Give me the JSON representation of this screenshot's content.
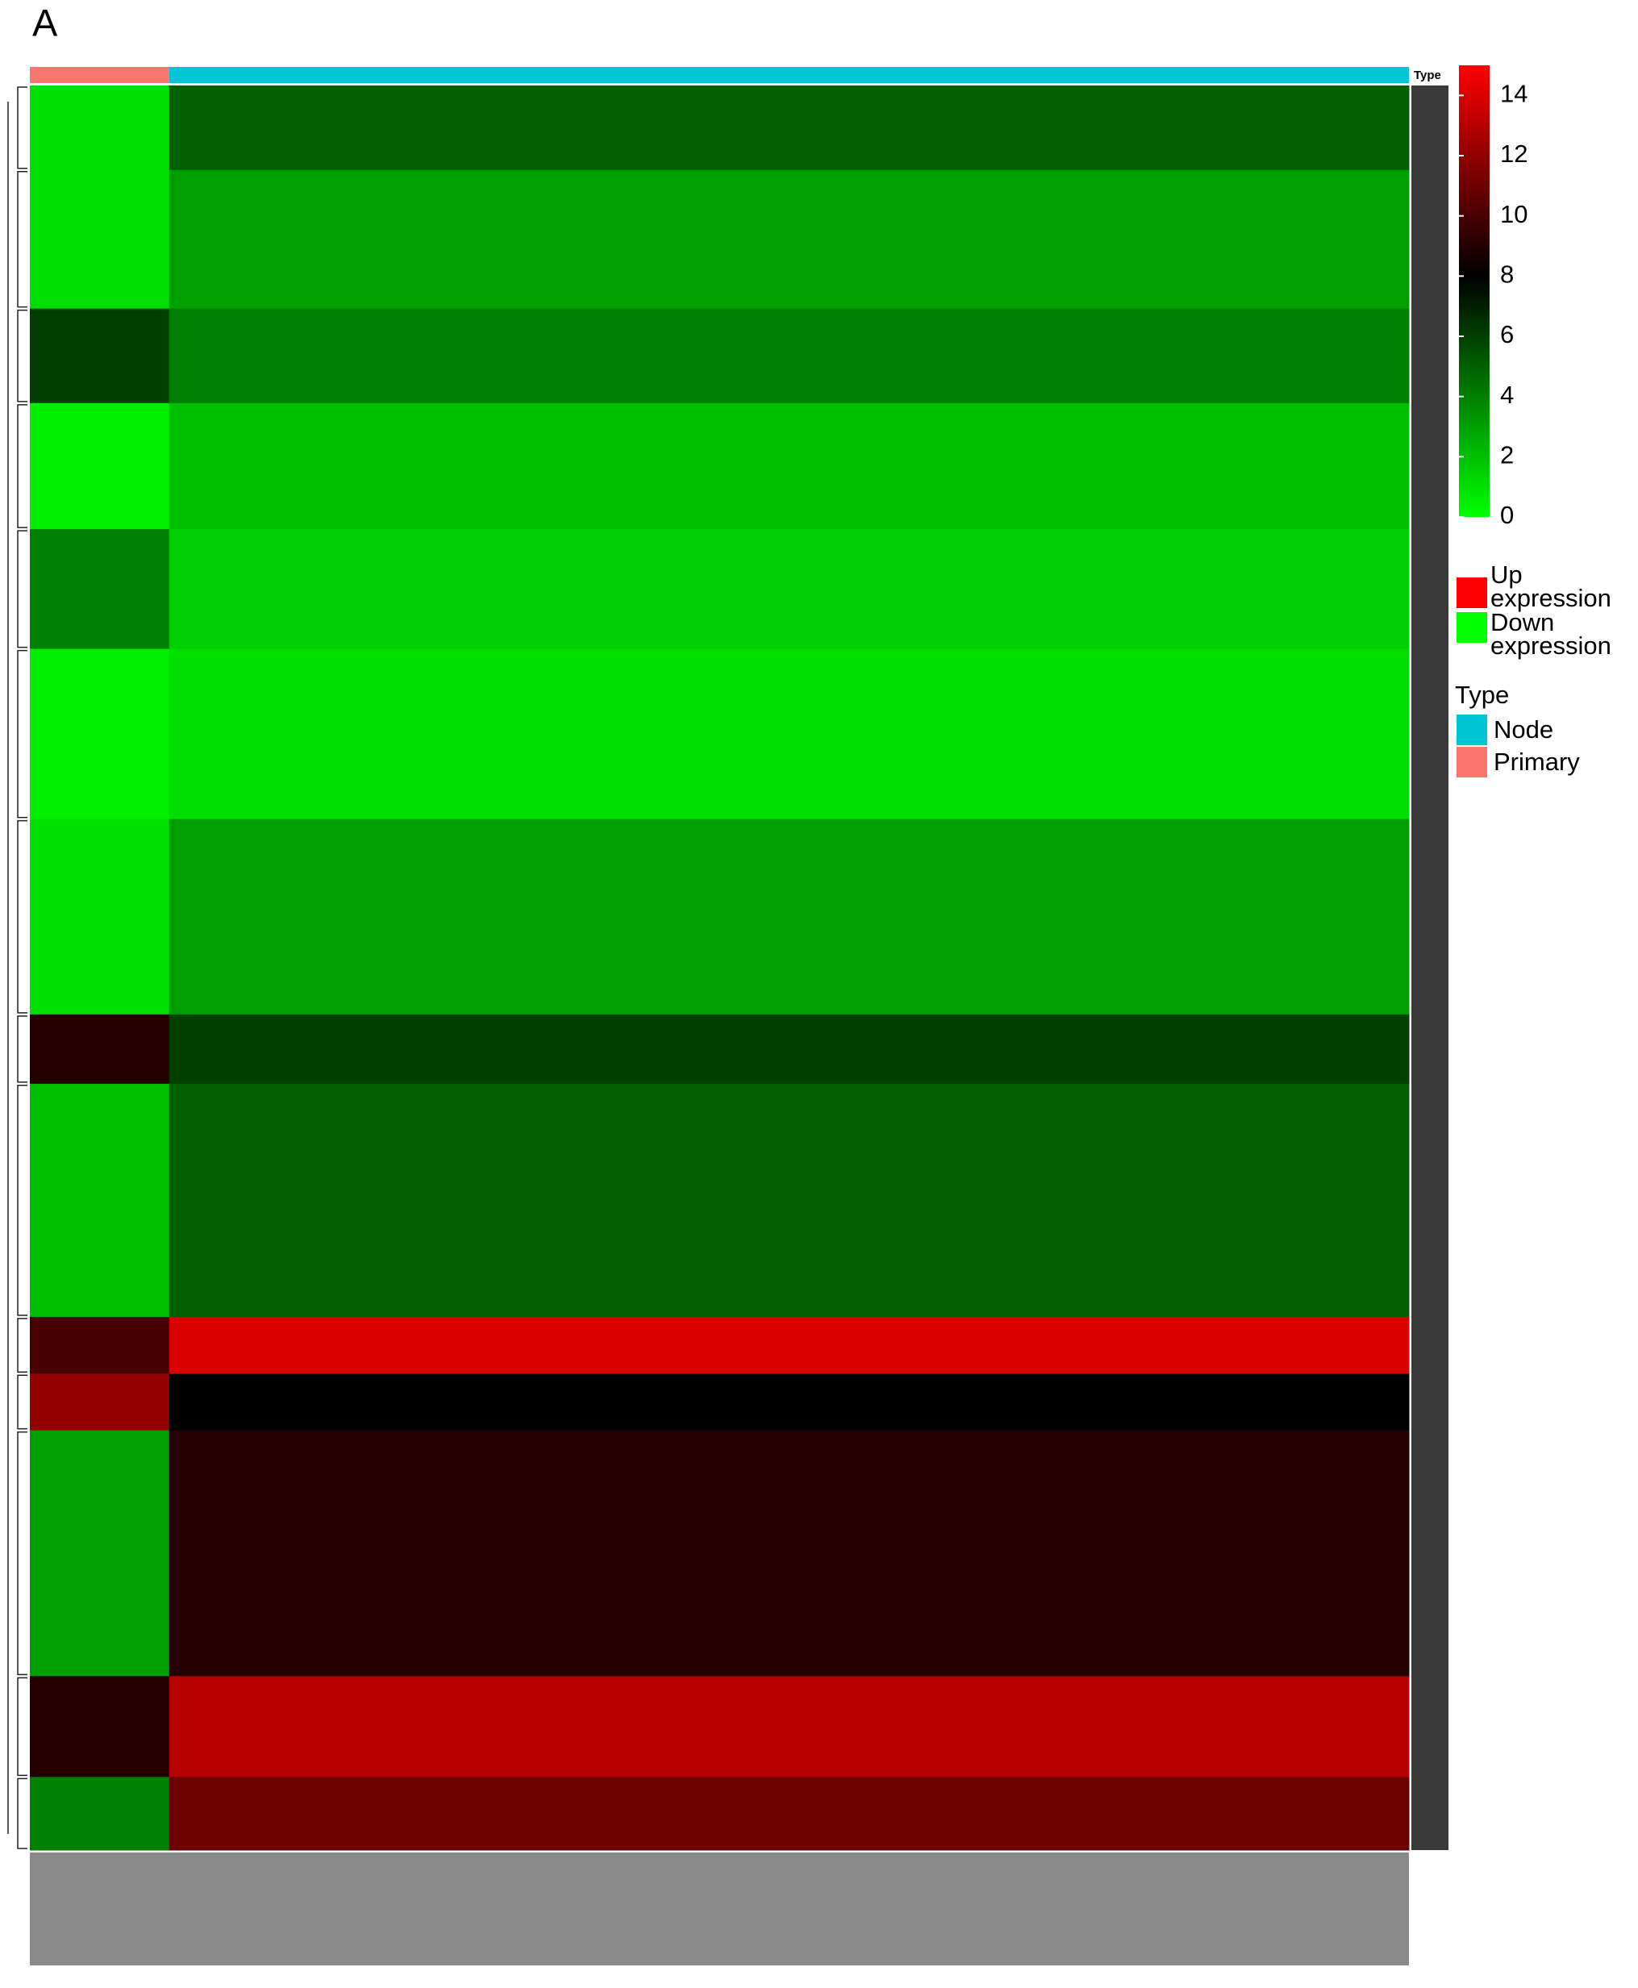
{
  "chart_data": {
    "type": "heatmap",
    "panel_label": "A",
    "annotation_label": "Type",
    "row_counts": [
      67,
      110,
      75,
      100,
      95,
      135,
      155,
      55,
      185,
      45,
      45,
      195,
      80,
      58
    ],
    "sample_counts": [
      50,
      445
    ],
    "series": [
      {
        "name": "Primary",
        "color": "#f8766d",
        "values": [
          1,
          1,
          6,
          0.5,
          4,
          0.5,
          1,
          9,
          2,
          10,
          12,
          3,
          9,
          4
        ]
      },
      {
        "name": "Node",
        "color": "#00c5d8",
        "values": [
          5,
          3,
          4,
          2,
          1.5,
          1,
          3,
          6,
          5,
          14,
          8,
          9,
          13,
          11
        ]
      }
    ],
    "colorscale": [
      {
        "value": 0,
        "color": "#00ff00"
      },
      {
        "value": 8,
        "color": "#000000"
      },
      {
        "value": 15,
        "color": "#ff0000"
      }
    ],
    "zlim": [
      0,
      15
    ],
    "zticks": [
      0,
      2,
      4,
      6,
      8,
      10,
      12,
      14
    ],
    "expression_legend": [
      {
        "label": "Up expression",
        "color": "#ff0000"
      },
      {
        "label": "Down expression",
        "color": "#00ff00"
      }
    ],
    "type_legend_title": "Type"
  }
}
